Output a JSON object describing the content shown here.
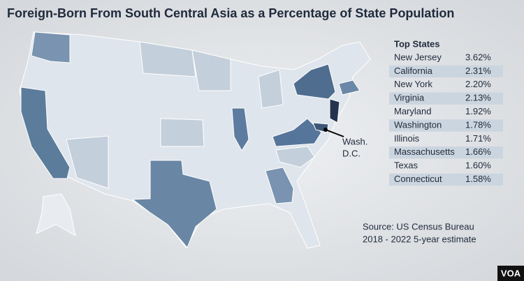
{
  "title": "Foreign-Born From South Central Asia as a Percentage of State Population",
  "map": {
    "dc_label": [
      "Wash.",
      "D.C."
    ]
  },
  "table": {
    "header": "Top States",
    "rows": [
      [
        "New Jersey",
        "3.62%"
      ],
      [
        "California",
        "2.31%"
      ],
      [
        "New York",
        "2.20%"
      ],
      [
        "Virginia",
        "2.13%"
      ],
      [
        "Maryland",
        "1.92%"
      ],
      [
        "Washington",
        "1.78%"
      ],
      [
        "Illinois",
        "1.71%"
      ],
      [
        "Massachusetts",
        "1.66%"
      ],
      [
        "Texas",
        "1.60%"
      ],
      [
        "Connecticut",
        "1.58%"
      ]
    ]
  },
  "source": [
    "Source: US Census Bureau",
    "2018 - 2022 5-year estimate"
  ],
  "logo": "VOA"
}
